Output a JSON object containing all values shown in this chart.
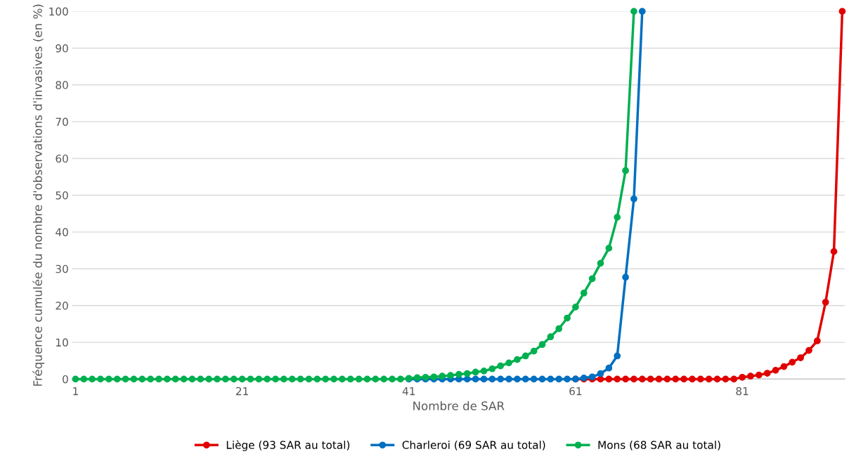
{
  "chart_data": {
    "type": "line",
    "xlabel": "Nombre de SAR",
    "ylabel": "Fréquence cumulée du nombre d'observations d'invasives (en %)",
    "series": [
      {
        "name": "Liège (93 SAR au total)",
        "color": "#e00000",
        "x": [
          61,
          62,
          63,
          64,
          65,
          66,
          67,
          68,
          69,
          70,
          71,
          72,
          73,
          74,
          75,
          76,
          77,
          78,
          79,
          80,
          81,
          82,
          83,
          84,
          85,
          86,
          87,
          88,
          89,
          90,
          91,
          92,
          93
        ],
        "values": [
          0,
          0,
          0,
          0,
          0,
          0,
          0,
          0,
          0,
          0,
          0,
          0,
          0,
          0,
          0,
          0,
          0,
          0,
          0,
          0,
          0.5,
          0.8,
          1.1,
          1.6,
          2.4,
          3.4,
          4.6,
          5.8,
          7.8,
          10.4,
          20.9,
          34.7,
          100
        ]
      },
      {
        "name": "Charleroi (69 SAR au total)",
        "color": "#0070c0",
        "x": [
          41,
          42,
          43,
          44,
          45,
          46,
          47,
          48,
          49,
          50,
          51,
          52,
          53,
          54,
          55,
          56,
          57,
          58,
          59,
          60,
          61,
          62,
          63,
          64,
          65,
          66,
          67,
          68,
          69
        ],
        "values": [
          0,
          0,
          0,
          0,
          0,
          0,
          0,
          0,
          0,
          0,
          0,
          0,
          0,
          0,
          0,
          0,
          0,
          0,
          0,
          0,
          0,
          0.3,
          0.6,
          1.5,
          3,
          6.3,
          27.7,
          49,
          100
        ]
      },
      {
        "name": "Mons (68 SAR au total)",
        "color": "#00b050",
        "x": [
          1,
          2,
          3,
          4,
          5,
          6,
          7,
          8,
          9,
          10,
          11,
          12,
          13,
          14,
          15,
          16,
          17,
          18,
          19,
          20,
          21,
          22,
          23,
          24,
          25,
          26,
          27,
          28,
          29,
          30,
          31,
          32,
          33,
          34,
          35,
          36,
          37,
          38,
          39,
          40,
          41,
          42,
          43,
          44,
          45,
          46,
          47,
          48,
          49,
          50,
          51,
          52,
          53,
          54,
          55,
          56,
          57,
          58,
          59,
          60,
          61,
          62,
          63,
          64,
          65,
          66,
          67,
          68
        ],
        "values": [
          0,
          0,
          0,
          0,
          0,
          0,
          0,
          0,
          0,
          0,
          0,
          0,
          0,
          0,
          0,
          0,
          0,
          0,
          0,
          0,
          0,
          0,
          0,
          0,
          0,
          0,
          0,
          0,
          0,
          0,
          0,
          0,
          0,
          0,
          0,
          0,
          0,
          0,
          0,
          0,
          0.2,
          0.4,
          0.5,
          0.6,
          0.8,
          1.0,
          1.3,
          1.5,
          1.9,
          2.2,
          2.8,
          3.6,
          4.4,
          5.3,
          6.3,
          7.6,
          9.4,
          11.5,
          13.7,
          16.6,
          19.6,
          23.4,
          27.3,
          31.5,
          35.6,
          44,
          56.7,
          100
        ]
      }
    ],
    "xlim": [
      0.6,
      93.3
    ],
    "xticks": [
      1,
      21,
      41,
      61,
      81
    ],
    "ylim": [
      0,
      100
    ],
    "yticks": [
      0,
      10,
      20,
      30,
      40,
      50,
      60,
      70,
      80,
      90,
      100
    ],
    "grid": "y",
    "legend": "bottom",
    "marker": "circle",
    "line_style": "solid"
  }
}
